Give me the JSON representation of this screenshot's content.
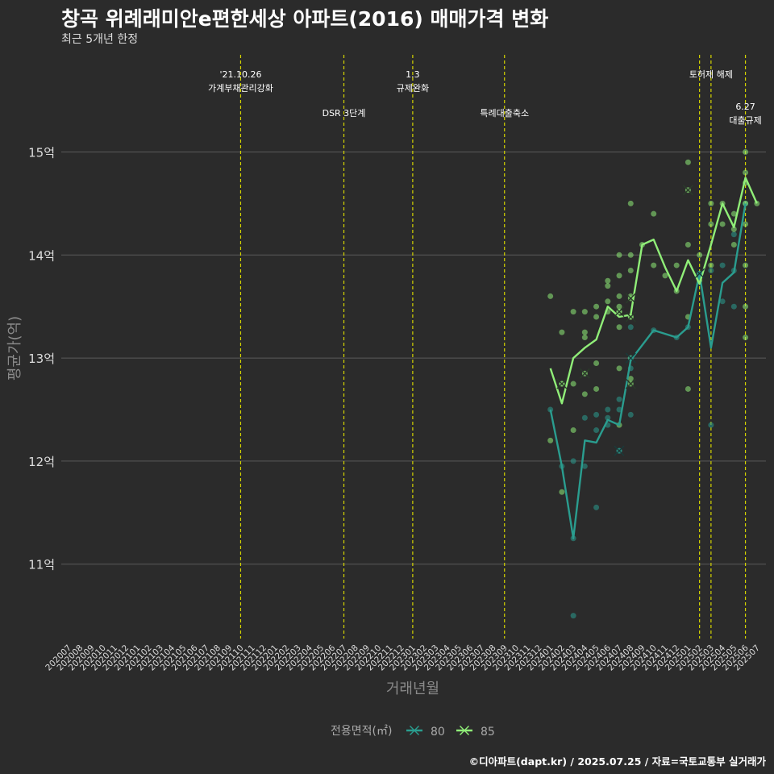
{
  "title": "창곡 위례래미안e편한세상 아파트(2016) 매매가격 변화",
  "subtitle": "최근 5개년 한정",
  "caption": "©디아파트(dapt.kr) / 2025.07.25 / 자료=국토교통부 실거래가",
  "colors": {
    "background": "#2b2b2b",
    "grid": "#5a5a5a",
    "event_line": "#d4d400",
    "series_80": "#2a9d8f",
    "series_85": "#90ee78"
  },
  "chart_data": {
    "type": "line",
    "title": "창곡 위례래미안e편한세상 아파트(2016) 매매가격 변화",
    "subtitle": "최근 5개년 한정",
    "xlabel": "거래년월",
    "ylabel": "평균가(억)",
    "x": [
      "202007",
      "202008",
      "202009",
      "202010",
      "202011",
      "202012",
      "202101",
      "202102",
      "202103",
      "202104",
      "202105",
      "202106",
      "202107",
      "202108",
      "202109",
      "202110",
      "202111",
      "202112",
      "202201",
      "202202",
      "202203",
      "202204",
      "202205",
      "202206",
      "202207",
      "202208",
      "202209",
      "202210",
      "202211",
      "202212",
      "202301",
      "202302",
      "202303",
      "202304",
      "202305",
      "202306",
      "202307",
      "202308",
      "202309",
      "202310",
      "202311",
      "202312",
      "202401",
      "202402",
      "202403",
      "202404",
      "202405",
      "202406",
      "202407",
      "202408",
      "202409",
      "202410",
      "202411",
      "202412",
      "202501",
      "202502",
      "202503",
      "202504",
      "202505",
      "202506",
      "202507"
    ],
    "ylim": [
      10.3,
      16.0
    ],
    "yticks": [
      11,
      12,
      13,
      14,
      15
    ],
    "ytick_labels": [
      "11억",
      "12억",
      "13억",
      "14억",
      "15억"
    ],
    "grid": true,
    "legend": {
      "title": "전용면적(㎡)",
      "position": "bottom"
    },
    "series": [
      {
        "name": "80",
        "color": "#2a9d8f",
        "line": [
          [
            "202401",
            12.5
          ],
          [
            "202402",
            11.95
          ],
          [
            "202403",
            11.25
          ],
          [
            "202404",
            12.2
          ],
          [
            "202405",
            12.18
          ],
          [
            "202406",
            12.4
          ],
          [
            "202407",
            12.35
          ],
          [
            "202408",
            12.98
          ],
          [
            "202410",
            13.27
          ],
          [
            "202412",
            13.2
          ],
          [
            "202501",
            13.3
          ],
          [
            "202502",
            13.82
          ],
          [
            "202503",
            13.1
          ],
          [
            "202504",
            13.73
          ],
          [
            "202505",
            13.83
          ],
          [
            "202506",
            14.5
          ]
        ],
        "points": [
          [
            "202401",
            12.5
          ],
          [
            "202402",
            11.95
          ],
          [
            "202403",
            11.25
          ],
          [
            "202403",
            12.0
          ],
          [
            "202403",
            10.5
          ],
          [
            "202404",
            11.95
          ],
          [
            "202404",
            12.42
          ],
          [
            "202405",
            12.45
          ],
          [
            "202405",
            12.3
          ],
          [
            "202405",
            11.55
          ],
          [
            "202406",
            12.5
          ],
          [
            "202406",
            12.42
          ],
          [
            "202406",
            12.35
          ],
          [
            "202407",
            12.6
          ],
          [
            "202407",
            12.5
          ],
          [
            "202407",
            12.1
          ],
          [
            "202408",
            13.3
          ],
          [
            "202408",
            12.45
          ],
          [
            "202408",
            12.9
          ],
          [
            "202410",
            13.27
          ],
          [
            "202412",
            13.2
          ],
          [
            "202501",
            13.3
          ],
          [
            "202502",
            13.82
          ],
          [
            "202503",
            12.35
          ],
          [
            "202503",
            13.85
          ],
          [
            "202504",
            13.55
          ],
          [
            "202504",
            13.9
          ],
          [
            "202505",
            13.5
          ],
          [
            "202505",
            13.85
          ],
          [
            "202505",
            14.2
          ],
          [
            "202506",
            14.5
          ]
        ],
        "cancelled": [
          [
            "202407",
            12.1
          ],
          [
            "202408",
            13.0
          ],
          [
            "202502",
            13.82
          ]
        ]
      },
      {
        "name": "85",
        "color": "#90ee78",
        "line": [
          [
            "202401",
            12.9
          ],
          [
            "202402",
            12.56
          ],
          [
            "202403",
            13.0
          ],
          [
            "202404",
            13.1
          ],
          [
            "202405",
            13.18
          ],
          [
            "202406",
            13.5
          ],
          [
            "202407",
            13.4
          ],
          [
            "202408",
            13.42
          ],
          [
            "202409",
            14.1
          ],
          [
            "202410",
            14.15
          ],
          [
            "202411",
            13.88
          ],
          [
            "202412",
            13.65
          ],
          [
            "202501",
            13.95
          ],
          [
            "202502",
            13.72
          ],
          [
            "202503",
            14.1
          ],
          [
            "202504",
            14.5
          ],
          [
            "202505",
            14.27
          ],
          [
            "202506",
            14.75
          ],
          [
            "202507",
            14.5
          ]
        ],
        "points": [
          [
            "202401",
            13.6
          ],
          [
            "202401",
            12.2
          ],
          [
            "202402",
            12.75
          ],
          [
            "202402",
            13.25
          ],
          [
            "202402",
            11.7
          ],
          [
            "202403",
            13.45
          ],
          [
            "202403",
            12.75
          ],
          [
            "202403",
            12.3
          ],
          [
            "202404",
            13.45
          ],
          [
            "202404",
            13.25
          ],
          [
            "202404",
            13.2
          ],
          [
            "202404",
            12.65
          ],
          [
            "202405",
            13.5
          ],
          [
            "202405",
            13.4
          ],
          [
            "202405",
            12.95
          ],
          [
            "202405",
            12.7
          ],
          [
            "202406",
            13.75
          ],
          [
            "202406",
            13.7
          ],
          [
            "202406",
            13.55
          ],
          [
            "202406",
            13.45
          ],
          [
            "202407",
            14.0
          ],
          [
            "202407",
            13.8
          ],
          [
            "202407",
            13.6
          ],
          [
            "202407",
            13.5
          ],
          [
            "202407",
            13.45
          ],
          [
            "202407",
            13.3
          ],
          [
            "202407",
            12.9
          ],
          [
            "202407",
            12.35
          ],
          [
            "202408",
            14.5
          ],
          [
            "202408",
            14.0
          ],
          [
            "202408",
            13.85
          ],
          [
            "202408",
            13.6
          ],
          [
            "202408",
            13.4
          ],
          [
            "202408",
            13.0
          ],
          [
            "202408",
            12.8
          ],
          [
            "202409",
            14.1
          ],
          [
            "202410",
            14.4
          ],
          [
            "202410",
            13.9
          ],
          [
            "202411",
            13.8
          ],
          [
            "202412",
            13.9
          ],
          [
            "202412",
            13.65
          ],
          [
            "202501",
            14.9
          ],
          [
            "202501",
            14.1
          ],
          [
            "202501",
            13.4
          ],
          [
            "202501",
            12.7
          ],
          [
            "202502",
            14.0
          ],
          [
            "202502",
            13.75
          ],
          [
            "202503",
            14.5
          ],
          [
            "202503",
            14.3
          ],
          [
            "202503",
            13.9
          ],
          [
            "202504",
            14.5
          ],
          [
            "202504",
            14.3
          ],
          [
            "202505",
            14.4
          ],
          [
            "202505",
            14.25
          ],
          [
            "202505",
            14.1
          ],
          [
            "202506",
            15.0
          ],
          [
            "202506",
            14.8
          ],
          [
            "202506",
            14.7
          ],
          [
            "202506",
            14.5
          ],
          [
            "202506",
            14.3
          ],
          [
            "202506",
            13.9
          ],
          [
            "202506",
            13.5
          ],
          [
            "202506",
            13.2
          ],
          [
            "202507",
            14.5
          ]
        ],
        "cancelled": [
          [
            "202402",
            12.75
          ],
          [
            "202404",
            12.85
          ],
          [
            "202407",
            13.45
          ],
          [
            "202408",
            13.58
          ],
          [
            "202408",
            13.4
          ],
          [
            "202408",
            12.75
          ],
          [
            "202501",
            14.63
          ]
        ]
      }
    ],
    "events": [
      {
        "x": "202110",
        "label_line1": "'21.10.26",
        "label_line2": "가계부채관리강화",
        "row": 0
      },
      {
        "x": "202207",
        "label_line1": "DSR 3단계",
        "label_line2": "",
        "row": 1
      },
      {
        "x": "202301",
        "label_line1": "1.3",
        "label_line2": "규제완화",
        "row": 0
      },
      {
        "x": "202309",
        "label_line1": "특례대출축소",
        "label_line2": "",
        "row": 1
      },
      {
        "x": "202502",
        "label_line1": "",
        "label_line2": "",
        "row": 0
      },
      {
        "x": "202503",
        "label_line1": "토허제 해제",
        "label_line2": "",
        "row": 0
      },
      {
        "x": "202506",
        "label_line1": "6.27",
        "label_line2": "대출규제",
        "row": 2
      }
    ]
  }
}
